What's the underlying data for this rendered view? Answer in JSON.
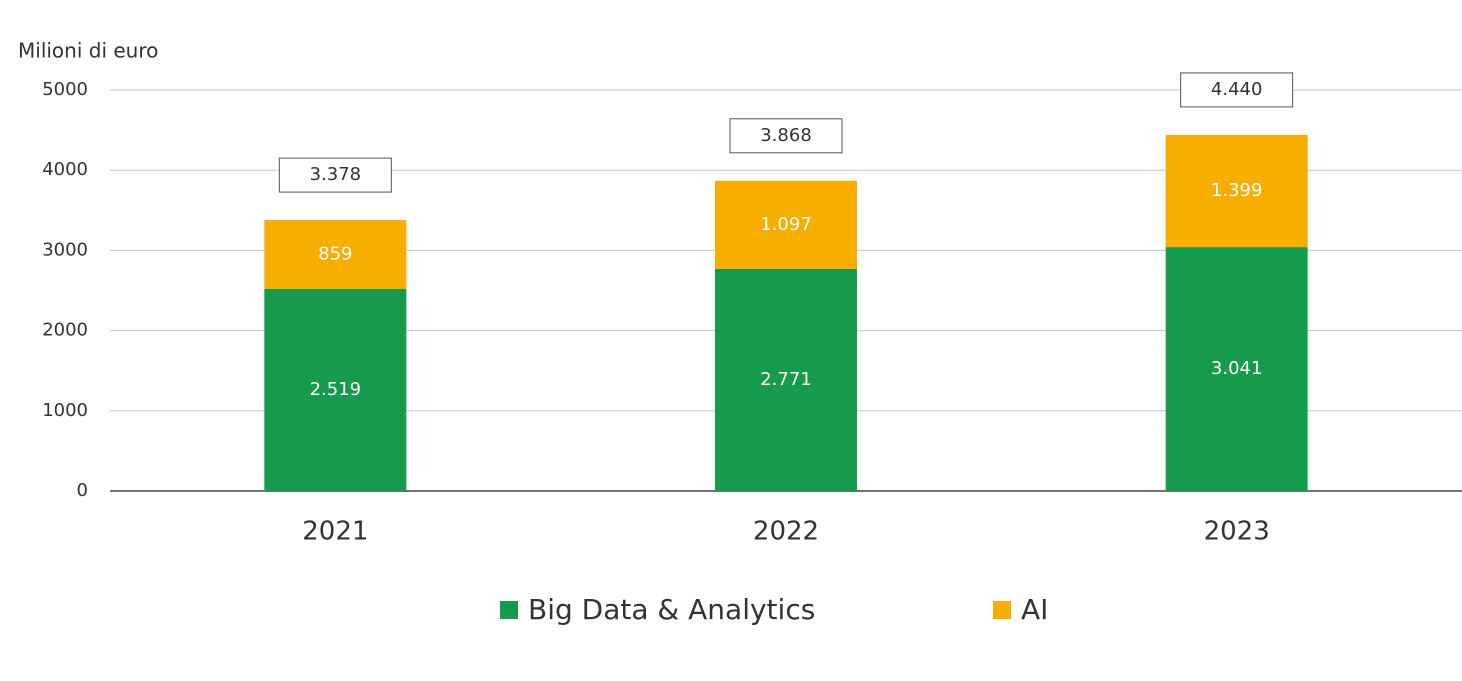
{
  "chart_data": {
    "type": "stacked-bar",
    "y_label": "Milioni di euro",
    "categories": [
      "2021",
      "2022",
      "2023"
    ],
    "series": [
      {
        "name": "Big Data & Analytics",
        "color": "#169b4c",
        "values": [
          2519,
          2771,
          3041
        ],
        "value_labels": [
          "2.519",
          "2.771",
          "3.041"
        ]
      },
      {
        "name": "AI",
        "color": "#f8ae00",
        "values": [
          859,
          1097,
          1399
        ],
        "value_labels": [
          "859",
          "1.097",
          "1.399"
        ]
      }
    ],
    "totals": {
      "values": [
        3378,
        3868,
        4440
      ],
      "value_labels": [
        "3.378",
        "3.868",
        "4.440"
      ]
    },
    "ylim": [
      0,
      5000
    ],
    "yticks": [
      0,
      1000,
      2000,
      3000,
      4000,
      5000
    ],
    "grid": true
  }
}
